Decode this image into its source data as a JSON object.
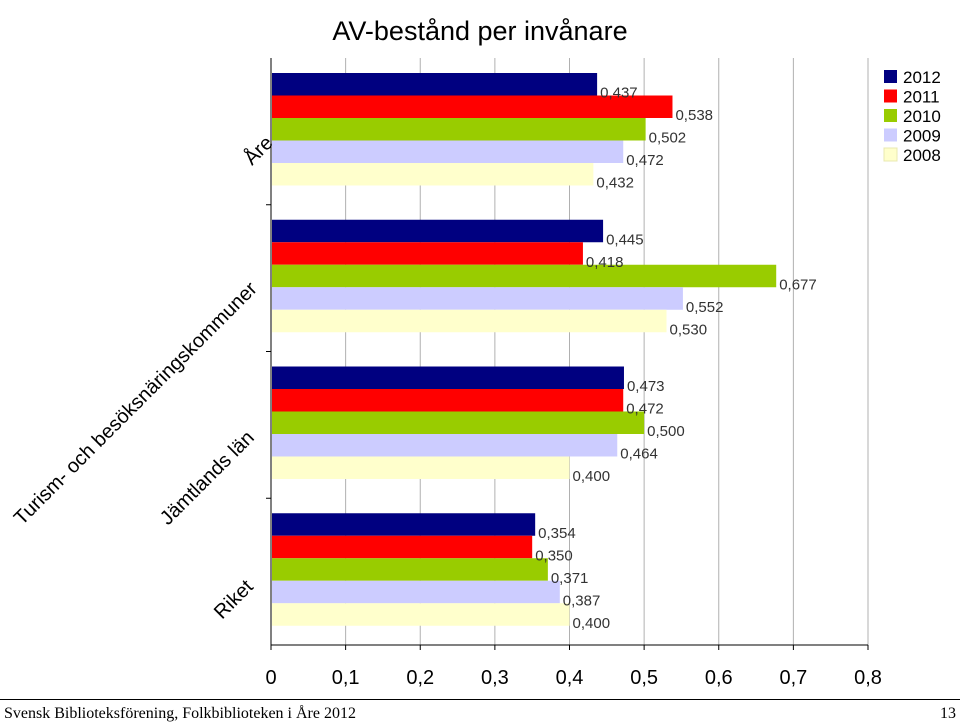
{
  "chart_data": {
    "type": "bar",
    "orientation": "horizontal",
    "title": "AV-bestånd per invånare",
    "categories": [
      "Åre",
      "Turism- och besöksnäringskommuner",
      "Jämtlands län",
      "Riket"
    ],
    "series": [
      {
        "name": "2012",
        "color": "#000080",
        "values": [
          0.437,
          0.445,
          0.473,
          0.354
        ],
        "labels": [
          "0,437",
          "0,445",
          "0,473",
          "0,354"
        ]
      },
      {
        "name": "2011",
        "color": "#ff0000",
        "values": [
          0.538,
          0.418,
          0.472,
          0.35
        ],
        "labels": [
          "0,538",
          "0,418",
          "0,472",
          "0,350"
        ]
      },
      {
        "name": "2010",
        "color": "#99cc00",
        "values": [
          0.502,
          0.677,
          0.5,
          0.371
        ],
        "labels": [
          "0,502",
          "0,677",
          "0,500",
          "0,371"
        ]
      },
      {
        "name": "2009",
        "color": "#ccccff",
        "values": [
          0.472,
          0.552,
          0.464,
          0.387
        ],
        "labels": [
          "0,472",
          "0,552",
          "0,464",
          "0,387"
        ]
      },
      {
        "name": "2008",
        "color": "#ffffcc",
        "values": [
          0.432,
          0.53,
          0.4,
          0.4
        ],
        "labels": [
          "0,432",
          "0,530",
          "0,400",
          "0,400"
        ]
      }
    ],
    "xlim": [
      0,
      0.8
    ],
    "xticks": [
      "0",
      "0,1",
      "0,2",
      "0,3",
      "0,4",
      "0,5",
      "0,6",
      "0,7",
      "0,8"
    ],
    "grid": "vertical",
    "legend": "top-right"
  },
  "footer": {
    "left": "Svensk Biblioteksförening, Folkbiblioteken i Åre 2012",
    "page_number": "13"
  }
}
